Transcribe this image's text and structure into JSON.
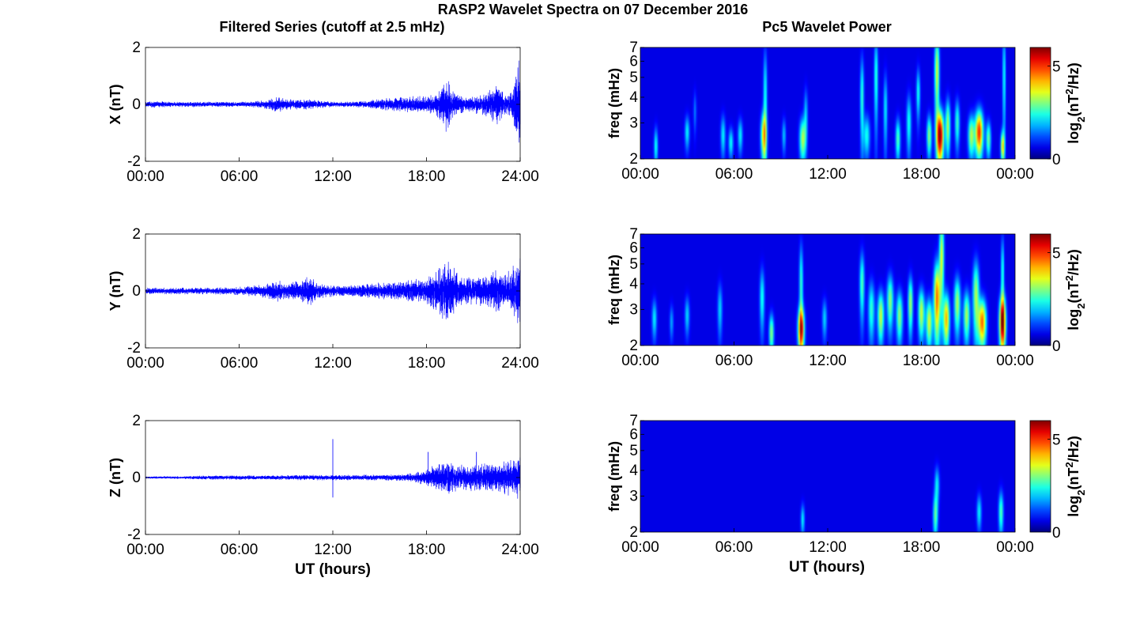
{
  "figure": {
    "title": "RASP2 Wavelet Spectra on 07 December 2016",
    "left_title": "Filtered Series (cutoff at 2.5 mHz)",
    "right_title": "Pc5 Wavelet Power",
    "time_xlabel": "UT (hours)"
  },
  "colors": {
    "trace": "#0000ff",
    "background_power": "#00008f",
    "colormap": "jet"
  },
  "chart_data": [
    {
      "type": "line",
      "panel": "X",
      "ylabel": "X (nT)",
      "xlabel": "",
      "xticks": [
        "00:00",
        "06:00",
        "12:00",
        "18:00",
        "24:00"
      ],
      "yticks": [
        "-2",
        "0",
        "2"
      ],
      "xlim": [
        0,
        24
      ],
      "ylim": [
        -2,
        2
      ],
      "envelope_hours": [
        0,
        2,
        4,
        6,
        7,
        8,
        8.5,
        9,
        10,
        11,
        12,
        13,
        14,
        15,
        16,
        17,
        18,
        18.5,
        19,
        19.3,
        19.6,
        20,
        21,
        22,
        22.5,
        23,
        23.5,
        24
      ],
      "envelope_amp_nT": [
        0.12,
        0.1,
        0.1,
        0.1,
        0.12,
        0.2,
        0.3,
        0.2,
        0.2,
        0.15,
        0.1,
        0.1,
        0.12,
        0.2,
        0.25,
        0.3,
        0.3,
        0.35,
        0.7,
        1.1,
        0.6,
        0.35,
        0.3,
        0.5,
        0.8,
        0.4,
        0.5,
        1.8
      ]
    },
    {
      "type": "line",
      "panel": "Y",
      "ylabel": "Y (nT)",
      "xlabel": "",
      "xticks": [
        "00:00",
        "06:00",
        "12:00",
        "18:00",
        "24:00"
      ],
      "yticks": [
        "-2",
        "0",
        "2"
      ],
      "xlim": [
        0,
        24
      ],
      "ylim": [
        -2,
        2
      ],
      "envelope_hours": [
        0,
        2,
        4,
        6,
        7,
        8,
        8.5,
        9,
        10,
        10.5,
        11,
        12,
        13,
        14,
        15,
        16,
        17,
        18,
        18.5,
        19,
        19.5,
        20,
        21,
        22,
        22.5,
        23,
        23.5,
        24
      ],
      "envelope_amp_nT": [
        0.12,
        0.12,
        0.12,
        0.15,
        0.2,
        0.3,
        0.4,
        0.3,
        0.4,
        0.6,
        0.3,
        0.2,
        0.2,
        0.25,
        0.3,
        0.3,
        0.4,
        0.5,
        0.7,
        1.0,
        1.2,
        0.6,
        0.5,
        0.6,
        0.8,
        0.6,
        0.9,
        1.5
      ]
    },
    {
      "type": "line",
      "panel": "Z",
      "ylabel": "Z (nT)",
      "xlabel": "UT (hours)",
      "xticks": [
        "00:00",
        "06:00",
        "12:00",
        "18:00",
        "24:00"
      ],
      "yticks": [
        "-2",
        "0",
        "2"
      ],
      "xlim": [
        0,
        24
      ],
      "ylim": [
        -2,
        2
      ],
      "envelope_hours": [
        0,
        2,
        3,
        4,
        6,
        8,
        10,
        12,
        14,
        16,
        17,
        18,
        18.5,
        19,
        19.5,
        20,
        21,
        22,
        23,
        24
      ],
      "envelope_amp_nT": [
        0.04,
        0.05,
        0.06,
        0.08,
        0.08,
        0.08,
        0.1,
        0.1,
        0.1,
        0.12,
        0.15,
        0.3,
        0.45,
        0.6,
        0.6,
        0.45,
        0.5,
        0.5,
        0.6,
        0.8
      ],
      "spikes": [
        {
          "hour": 12.0,
          "top": 1.35,
          "bottom": -0.7
        },
        {
          "hour": 18.1,
          "top": 0.9,
          "bottom": -0.3
        },
        {
          "hour": 21.2,
          "top": 0.9,
          "bottom": -0.3
        }
      ]
    },
    {
      "type": "heatmap",
      "panel": "X",
      "ylabel": "freq (mHz)",
      "xlabel": "",
      "xticks": [
        "00:00",
        "06:00",
        "12:00",
        "18:00",
        "00:00"
      ],
      "yticks": [
        "2",
        "3",
        "4",
        "5",
        "6",
        "7"
      ],
      "xlim": [
        0,
        24
      ],
      "ylim": [
        2,
        7
      ],
      "yscale": "log",
      "colorbar": {
        "label": "log2(nT2/Hz)",
        "range": [
          0,
          6
        ],
        "ticks": [
          "0",
          "5"
        ]
      },
      "blobs": [
        {
          "hour": 1.0,
          "f": 2.3,
          "fw": 0.5,
          "tw": 0.12,
          "p": 2.0
        },
        {
          "hour": 3.0,
          "f": 2.7,
          "fw": 0.5,
          "tw": 0.15,
          "p": 1.8
        },
        {
          "hour": 3.5,
          "f": 3.4,
          "fw": 0.8,
          "tw": 0.1,
          "p": 1.0
        },
        {
          "hour": 5.3,
          "f": 2.6,
          "fw": 0.6,
          "tw": 0.15,
          "p": 1.8
        },
        {
          "hour": 5.8,
          "f": 2.4,
          "fw": 0.4,
          "tw": 0.15,
          "p": 1.9
        },
        {
          "hour": 6.4,
          "f": 2.6,
          "fw": 0.5,
          "tw": 0.15,
          "p": 1.8
        },
        {
          "hour": 7.9,
          "f": 2.6,
          "fw": 0.7,
          "tw": 0.18,
          "p": 3.5
        },
        {
          "hour": 8.0,
          "f": 4.0,
          "fw": 2.5,
          "tw": 0.12,
          "p": 2.0
        },
        {
          "hour": 9.2,
          "f": 2.6,
          "fw": 0.5,
          "tw": 0.12,
          "p": 1.5
        },
        {
          "hour": 10.4,
          "f": 2.5,
          "fw": 0.6,
          "tw": 0.2,
          "p": 3.0
        },
        {
          "hour": 10.6,
          "f": 3.3,
          "fw": 1.0,
          "tw": 0.12,
          "p": 1.5
        },
        {
          "hour": 14.2,
          "f": 4.0,
          "fw": 2.0,
          "tw": 0.12,
          "p": 2.2
        },
        {
          "hour": 14.5,
          "f": 2.6,
          "fw": 0.6,
          "tw": 0.2,
          "p": 2.0
        },
        {
          "hour": 15.1,
          "f": 5.0,
          "fw": 2.5,
          "tw": 0.12,
          "p": 2.2
        },
        {
          "hour": 15.7,
          "f": 3.5,
          "fw": 1.5,
          "tw": 0.12,
          "p": 1.8
        },
        {
          "hour": 16.5,
          "f": 2.5,
          "fw": 0.6,
          "tw": 0.15,
          "p": 2.4
        },
        {
          "hour": 17.2,
          "f": 3.0,
          "fw": 1.0,
          "tw": 0.15,
          "p": 2.0
        },
        {
          "hour": 17.8,
          "f": 4.2,
          "fw": 1.2,
          "tw": 0.12,
          "p": 2.0
        },
        {
          "hour": 18.5,
          "f": 2.6,
          "fw": 0.6,
          "tw": 0.15,
          "p": 2.8
        },
        {
          "hour": 19.0,
          "f": 5.3,
          "fw": 2.5,
          "tw": 0.15,
          "p": 3.3
        },
        {
          "hour": 19.2,
          "f": 2.6,
          "fw": 0.75,
          "tw": 0.22,
          "p": 6.0
        },
        {
          "hour": 19.7,
          "f": 2.9,
          "fw": 0.9,
          "tw": 0.15,
          "p": 3.0
        },
        {
          "hour": 20.3,
          "f": 3.0,
          "fw": 0.8,
          "tw": 0.15,
          "p": 2.2
        },
        {
          "hour": 21.2,
          "f": 2.6,
          "fw": 0.6,
          "tw": 0.2,
          "p": 3.0
        },
        {
          "hour": 21.7,
          "f": 2.7,
          "fw": 0.7,
          "tw": 0.25,
          "p": 5.0
        },
        {
          "hour": 22.3,
          "f": 2.5,
          "fw": 0.5,
          "tw": 0.15,
          "p": 2.6
        },
        {
          "hour": 23.2,
          "f": 2.3,
          "fw": 0.4,
          "tw": 0.12,
          "p": 3.5
        },
        {
          "hour": 23.3,
          "f": 5.0,
          "fw": 3.0,
          "tw": 0.1,
          "p": 2.0
        }
      ]
    },
    {
      "type": "heatmap",
      "panel": "Y",
      "ylabel": "freq (mHz)",
      "xlabel": "",
      "xticks": [
        "00:00",
        "06:00",
        "12:00",
        "18:00",
        "00:00"
      ],
      "yticks": [
        "2",
        "3",
        "4",
        "5",
        "6",
        "7"
      ],
      "xlim": [
        0,
        24
      ],
      "ylim": [
        2,
        7
      ],
      "yscale": "log",
      "colorbar": {
        "label": "log2(nT2/Hz)",
        "range": [
          0,
          6
        ],
        "ticks": [
          "0",
          "5"
        ]
      },
      "blobs": [
        {
          "hour": 0.9,
          "f": 2.7,
          "fw": 0.6,
          "tw": 0.15,
          "p": 1.8
        },
        {
          "hour": 2.0,
          "f": 2.6,
          "fw": 0.5,
          "tw": 0.12,
          "p": 1.3
        },
        {
          "hour": 3.0,
          "f": 2.8,
          "fw": 0.6,
          "tw": 0.15,
          "p": 1.6
        },
        {
          "hour": 5.1,
          "f": 3.0,
          "fw": 0.9,
          "tw": 0.15,
          "p": 1.6
        },
        {
          "hour": 7.8,
          "f": 3.4,
          "fw": 1.2,
          "tw": 0.15,
          "p": 2.0
        },
        {
          "hour": 8.4,
          "f": 2.3,
          "fw": 0.5,
          "tw": 0.15,
          "p": 2.8
        },
        {
          "hour": 10.3,
          "f": 2.4,
          "fw": 0.6,
          "tw": 0.2,
          "p": 5.0
        },
        {
          "hour": 10.3,
          "f": 4.0,
          "fw": 2.0,
          "tw": 0.12,
          "p": 2.2
        },
        {
          "hour": 11.8,
          "f": 2.7,
          "fw": 0.6,
          "tw": 0.15,
          "p": 1.6
        },
        {
          "hour": 14.2,
          "f": 4.0,
          "fw": 1.5,
          "tw": 0.15,
          "p": 2.4
        },
        {
          "hour": 14.8,
          "f": 3.0,
          "fw": 1.0,
          "tw": 0.2,
          "p": 2.2
        },
        {
          "hour": 15.4,
          "f": 2.8,
          "fw": 0.8,
          "tw": 0.2,
          "p": 3.2
        },
        {
          "hour": 16.0,
          "f": 3.3,
          "fw": 1.0,
          "tw": 0.2,
          "p": 2.8
        },
        {
          "hour": 16.6,
          "f": 2.8,
          "fw": 0.8,
          "tw": 0.2,
          "p": 2.8
        },
        {
          "hour": 17.3,
          "f": 3.2,
          "fw": 1.0,
          "tw": 0.15,
          "p": 3.0
        },
        {
          "hour": 18.0,
          "f": 2.9,
          "fw": 0.8,
          "tw": 0.2,
          "p": 3.2
        },
        {
          "hour": 18.5,
          "f": 2.6,
          "fw": 0.7,
          "tw": 0.2,
          "p": 3.3
        },
        {
          "hour": 19.0,
          "f": 3.4,
          "fw": 1.5,
          "tw": 0.2,
          "p": 4.5
        },
        {
          "hour": 19.3,
          "f": 5.5,
          "fw": 2.5,
          "tw": 0.15,
          "p": 3.3
        },
        {
          "hour": 19.6,
          "f": 2.7,
          "fw": 0.8,
          "tw": 0.2,
          "p": 4.0
        },
        {
          "hour": 20.3,
          "f": 3.2,
          "fw": 1.0,
          "tw": 0.2,
          "p": 3.0
        },
        {
          "hour": 20.9,
          "f": 2.8,
          "fw": 0.8,
          "tw": 0.2,
          "p": 3.0
        },
        {
          "hour": 21.5,
          "f": 3.5,
          "fw": 1.5,
          "tw": 0.2,
          "p": 3.0
        },
        {
          "hour": 21.9,
          "f": 2.6,
          "fw": 0.7,
          "tw": 0.25,
          "p": 4.5
        },
        {
          "hour": 23.2,
          "f": 2.6,
          "fw": 0.8,
          "tw": 0.2,
          "p": 5.8
        },
        {
          "hour": 23.2,
          "f": 4.5,
          "fw": 2.0,
          "tw": 0.1,
          "p": 2.2
        }
      ]
    },
    {
      "type": "heatmap",
      "panel": "Z",
      "ylabel": "freq (mHz)",
      "xlabel": "UT (hours)",
      "xticks": [
        "00:00",
        "06:00",
        "12:00",
        "18:00",
        "00:00"
      ],
      "yticks": [
        "2",
        "3",
        "4",
        "5",
        "6",
        "7"
      ],
      "xlim": [
        0,
        24
      ],
      "ylim": [
        2,
        7
      ],
      "yscale": "log",
      "colorbar": {
        "label": "log2(nT2/Hz)",
        "range": [
          0,
          6
        ],
        "ticks": [
          "0",
          "5"
        ]
      },
      "blobs": [
        {
          "hour": 10.4,
          "f": 2.3,
          "fw": 0.4,
          "tw": 0.12,
          "p": 1.8
        },
        {
          "hour": 18.9,
          "f": 2.4,
          "fw": 0.6,
          "tw": 0.15,
          "p": 2.4
        },
        {
          "hour": 19.0,
          "f": 3.4,
          "fw": 0.7,
          "tw": 0.15,
          "p": 1.8
        },
        {
          "hour": 21.7,
          "f": 2.5,
          "fw": 0.5,
          "tw": 0.15,
          "p": 1.8
        },
        {
          "hour": 23.1,
          "f": 2.5,
          "fw": 0.6,
          "tw": 0.15,
          "p": 2.4
        }
      ]
    }
  ]
}
